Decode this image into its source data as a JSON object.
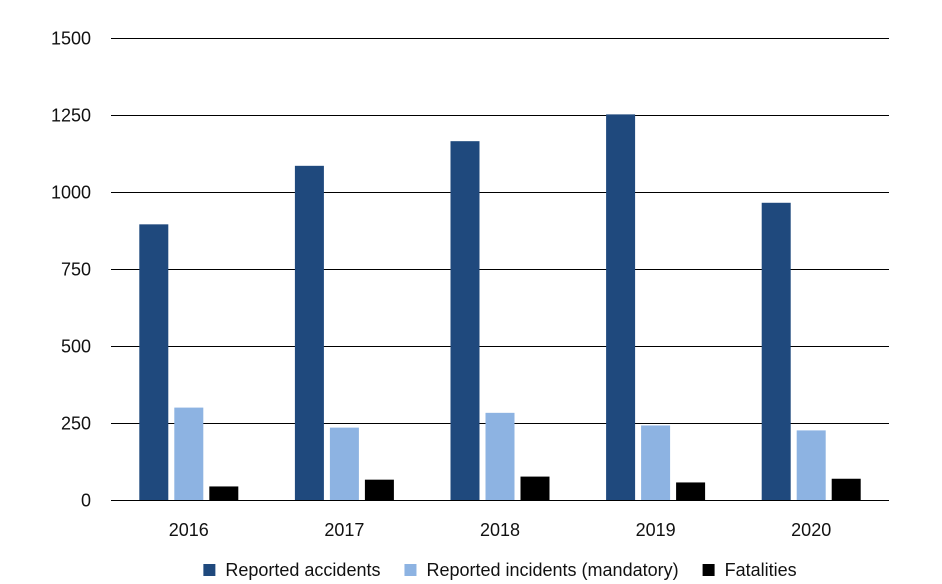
{
  "chart_data": {
    "type": "bar",
    "categories": [
      "2016",
      "2017",
      "2018",
      "2019",
      "2020"
    ],
    "series": [
      {
        "name": "Reported accidents",
        "values": [
          895,
          1085,
          1165,
          1252,
          965
        ],
        "color": "#1f497d"
      },
      {
        "name": "Reported incidents (mandatory)",
        "values": [
          300,
          235,
          283,
          242,
          226
        ],
        "color": "#8db3e2"
      },
      {
        "name": "Fatalities",
        "values": [
          44,
          66,
          76,
          57,
          69
        ],
        "color": "#000000"
      }
    ],
    "yticks": [
      "0",
      "250",
      "500",
      "750",
      "1000",
      "1250",
      "1500"
    ],
    "ylim": [
      0,
      1500
    ],
    "grid": true,
    "legend_position": "bottom"
  }
}
